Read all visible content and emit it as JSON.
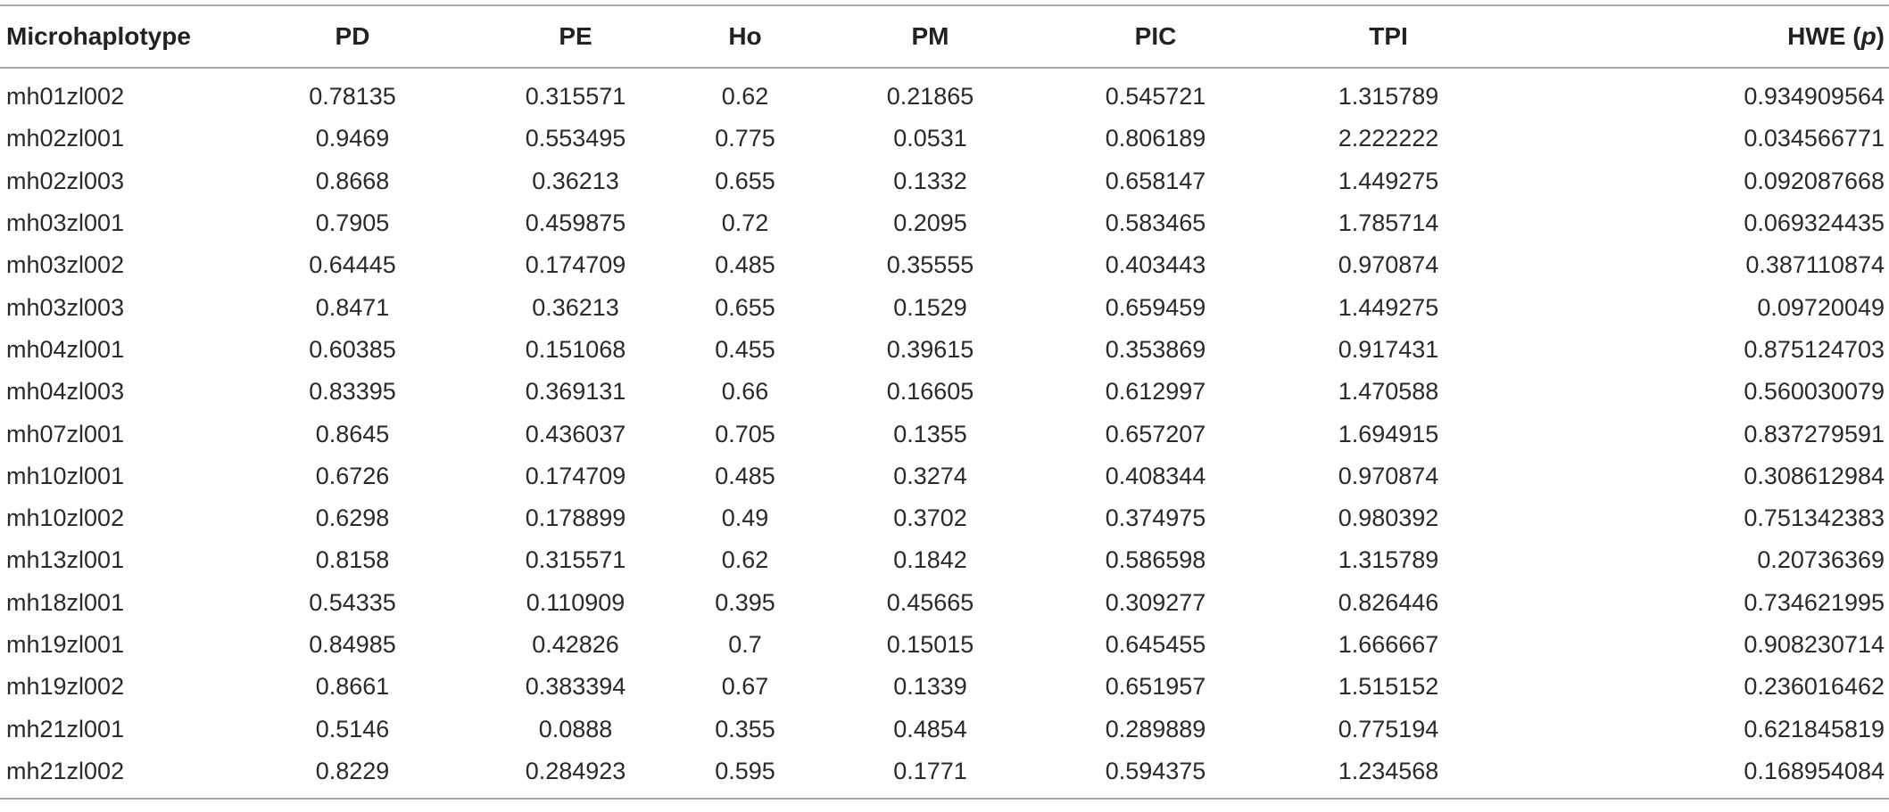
{
  "table": {
    "headers": {
      "microhaplotype": "Microhaplotype",
      "pd": "PD",
      "pe": "PE",
      "ho": "Ho",
      "pm": "PM",
      "pic": "PIC",
      "tpi": "TPI",
      "hwe_prefix": "HWE (",
      "hwe_p": "p",
      "hwe_suffix": ")"
    },
    "rows": [
      [
        "mh01zl002",
        "0.78135",
        "0.315571",
        "0.62",
        "0.21865",
        "0.545721",
        "1.315789",
        "0.934909564"
      ],
      [
        "mh02zl001",
        "0.9469",
        "0.553495",
        "0.775",
        "0.0531",
        "0.806189",
        "2.222222",
        "0.034566771"
      ],
      [
        "mh02zl003",
        "0.8668",
        "0.36213",
        "0.655",
        "0.1332",
        "0.658147",
        "1.449275",
        "0.092087668"
      ],
      [
        "mh03zl001",
        "0.7905",
        "0.459875",
        "0.72",
        "0.2095",
        "0.583465",
        "1.785714",
        "0.069324435"
      ],
      [
        "mh03zl002",
        "0.64445",
        "0.174709",
        "0.485",
        "0.35555",
        "0.403443",
        "0.970874",
        "0.387110874"
      ],
      [
        "mh03zl003",
        "0.8471",
        "0.36213",
        "0.655",
        "0.1529",
        "0.659459",
        "1.449275",
        "0.09720049"
      ],
      [
        "mh04zl001",
        "0.60385",
        "0.151068",
        "0.455",
        "0.39615",
        "0.353869",
        "0.917431",
        "0.875124703"
      ],
      [
        "mh04zl003",
        "0.83395",
        "0.369131",
        "0.66",
        "0.16605",
        "0.612997",
        "1.470588",
        "0.560030079"
      ],
      [
        "mh07zl001",
        "0.8645",
        "0.436037",
        "0.705",
        "0.1355",
        "0.657207",
        "1.694915",
        "0.837279591"
      ],
      [
        "mh10zl001",
        "0.6726",
        "0.174709",
        "0.485",
        "0.3274",
        "0.408344",
        "0.970874",
        "0.308612984"
      ],
      [
        "mh10zl002",
        "0.6298",
        "0.178899",
        "0.49",
        "0.3702",
        "0.374975",
        "0.980392",
        "0.751342383"
      ],
      [
        "mh13zl001",
        "0.8158",
        "0.315571",
        "0.62",
        "0.1842",
        "0.586598",
        "1.315789",
        "0.20736369"
      ],
      [
        "mh18zl001",
        "0.54335",
        "0.110909",
        "0.395",
        "0.45665",
        "0.309277",
        "0.826446",
        "0.734621995"
      ],
      [
        "mh19zl001",
        "0.84985",
        "0.42826",
        "0.7",
        "0.15015",
        "0.645455",
        "1.666667",
        "0.908230714"
      ],
      [
        "mh19zl002",
        "0.8661",
        "0.383394",
        "0.67",
        "0.1339",
        "0.651957",
        "1.515152",
        "0.236016462"
      ],
      [
        "mh21zl001",
        "0.5146",
        "0.0888",
        "0.355",
        "0.4854",
        "0.289889",
        "0.775194",
        "0.621845819"
      ],
      [
        "mh21zl002",
        "0.8229",
        "0.284923",
        "0.595",
        "0.1771",
        "0.594375",
        "1.234568",
        "0.168954084"
      ]
    ]
  }
}
